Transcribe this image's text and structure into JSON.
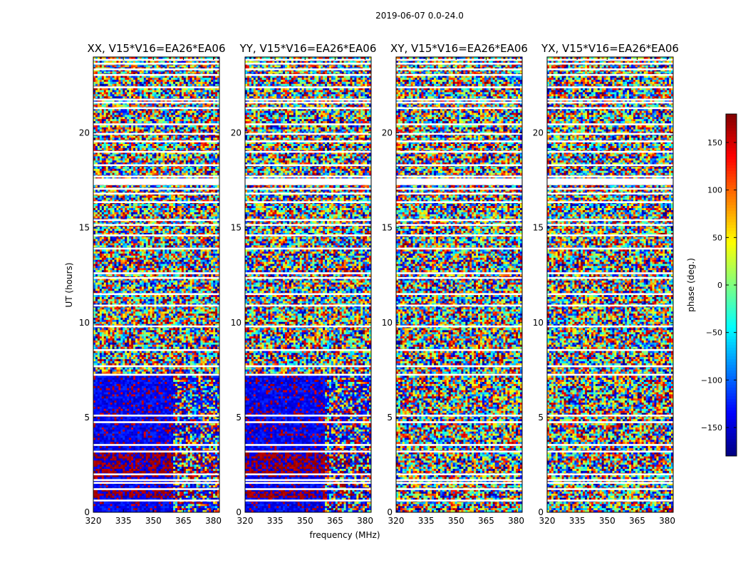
{
  "figure": {
    "suptitle": "2019-06-07 0.0-24.0",
    "ylabel": "UT (hours)",
    "xlabel": "frequency (MHz)"
  },
  "chart_data": {
    "type": "heatmap",
    "title": "2019-06-07 0.0-24.0",
    "xlabel": "frequency (MHz)",
    "ylabel": "UT (hours)",
    "xlim": [
      320,
      383
    ],
    "ylim": [
      0,
      24
    ],
    "x_ticks": [
      320,
      335,
      350,
      365,
      380
    ],
    "y_ticks": [
      0,
      5,
      10,
      15,
      20
    ],
    "colorbar": {
      "label": "phase (deg.)",
      "range": [
        -180,
        180
      ],
      "ticks": [
        -150,
        -100,
        -50,
        0,
        50,
        100,
        150
      ],
      "colormap": "jet"
    },
    "panels": [
      {
        "title": "XX, V15*V16=EA26*EA06",
        "coherent_phase_low_ut": true
      },
      {
        "title": "YY, V15*V16=EA26*EA06",
        "coherent_phase_low_ut": true
      },
      {
        "title": "XY, V15*V16=EA26*EA06",
        "coherent_phase_low_ut": false
      },
      {
        "title": "YX, V15*V16=EA26*EA06",
        "coherent_phase_low_ut": false
      }
    ],
    "flagged_ut_hours": [
      0.62,
      1.22,
      1.55,
      1.7,
      2.0,
      3.2,
      3.55,
      4.75,
      5.1,
      7.25,
      7.7,
      8.55,
      9.8,
      10.9,
      11.5,
      12.35,
      12.6,
      13.9,
      14.6,
      15.15,
      15.4,
      16.35,
      16.8,
      17.05,
      17.3,
      17.55,
      17.7,
      18.3,
      19.0,
      19.55,
      19.95,
      20.45,
      21.3,
      21.6,
      21.75,
      22.4,
      23.05,
      23.35,
      23.65,
      23.85
    ]
  }
}
